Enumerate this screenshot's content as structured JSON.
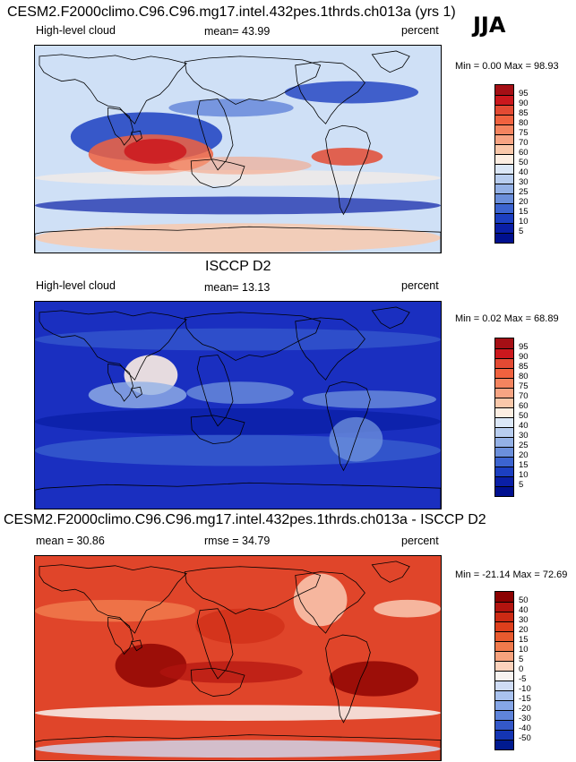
{
  "season": "JJA",
  "panels": [
    {
      "id": "model",
      "title": "CESM2.F2000climo.C96.C96.mg17.intel.432pes.1thrds.ch013a (yrs 1)",
      "left_label": "High-level cloud",
      "center_label": "mean=  43.99",
      "right_label": "percent",
      "min_max": "Min =   0.00 Max =  98.93",
      "colorbar_labels": [
        "95",
        "90",
        "85",
        "80",
        "75",
        "70",
        "60",
        "50",
        "40",
        "30",
        "25",
        "20",
        "15",
        "10",
        "5"
      ],
      "colorbar_colors": [
        "#a50f15",
        "#cb181d",
        "#e34a33",
        "#f0623f",
        "#f4845f",
        "#f7a483",
        "#fac8aa",
        "#fdeee2",
        "#dbe7f7",
        "#b8cdef",
        "#94b1e6",
        "#6b8fdb",
        "#3c64d0",
        "#1c3fc1",
        "#0a1fa6",
        "#00108f"
      ],
      "dominant_color": "#cfe0f6"
    },
    {
      "id": "obs",
      "title": "ISCCP D2",
      "left_label": "High-level cloud",
      "center_label": "mean=  13.13",
      "right_label": "percent",
      "min_max": "Min =   0.02 Max =  68.89",
      "colorbar_labels": [
        "95",
        "90",
        "85",
        "80",
        "75",
        "70",
        "60",
        "50",
        "40",
        "30",
        "25",
        "20",
        "15",
        "10",
        "5"
      ],
      "colorbar_colors": [
        "#a50f15",
        "#cb181d",
        "#e34a33",
        "#f0623f",
        "#f4845f",
        "#f7a483",
        "#fac8aa",
        "#fdeee2",
        "#dbe7f7",
        "#b8cdef",
        "#94b1e6",
        "#6b8fdb",
        "#3c64d0",
        "#1c3fc1",
        "#0a1fa6",
        "#00108f"
      ],
      "dominant_color": "#1a2fc0"
    },
    {
      "id": "diff",
      "title": "CESM2.F2000climo.C96.C96.mg17.intel.432pes.1thrds.ch013a - ISCCP D2",
      "left_label": "mean =  30.86",
      "center_label": "rmse =  34.79",
      "right_label": "percent",
      "min_max": "Min = -21.14 Max =  72.69",
      "colorbar_labels": [
        "50",
        "40",
        "30",
        "20",
        "15",
        "10",
        "5",
        "0",
        "-5",
        "-10",
        "-15",
        "-20",
        "-30",
        "-40",
        "-50"
      ],
      "colorbar_colors": [
        "#8b0000",
        "#b2140f",
        "#cc2a14",
        "#de3f1c",
        "#e85a2e",
        "#f07a4c",
        "#f6a27d",
        "#fbd2bc",
        "#f7f3f0",
        "#cfdcf4",
        "#a9c2ee",
        "#86a6e6",
        "#5f84da",
        "#3458c8",
        "#1435b3",
        "#001a8f"
      ],
      "dominant_color": "#e0452a"
    }
  ]
}
